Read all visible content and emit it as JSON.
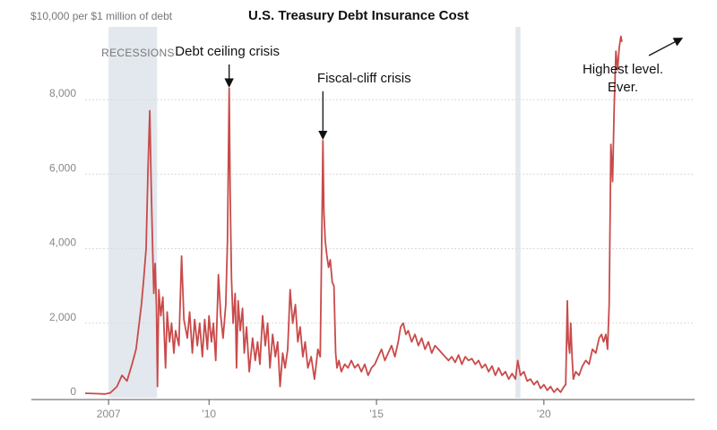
{
  "chart_data": {
    "type": "line",
    "title": "U.S. Treasury Debt Insurance Cost",
    "unit_label": "$10,000 per $1 million of debt",
    "xlim": [
      2005.3,
      2023.5
    ],
    "ylim": [
      0,
      10000
    ],
    "y_ticks": [
      {
        "value": 0,
        "label": "0"
      },
      {
        "value": 2000,
        "label": "2,000"
      },
      {
        "value": 4000,
        "label": "4,000"
      },
      {
        "value": 6000,
        "label": "6,000"
      },
      {
        "value": 8000,
        "label": "8,000"
      }
    ],
    "x_ticks": [
      {
        "value": 2006.0,
        "label": "2007"
      },
      {
        "value": 2009.0,
        "label": "'10"
      },
      {
        "value": 2014.0,
        "label": "'15"
      },
      {
        "value": 2019.0,
        "label": "'20"
      }
    ],
    "grid": "horizontal",
    "line_color": "#c94a4a",
    "recession_color": "#e3e8ee",
    "recessions": [
      {
        "start": 2006.0,
        "end": 2007.45,
        "label": "RECESSIONS"
      },
      {
        "start": 2018.15,
        "end": 2018.3,
        "label": ""
      }
    ],
    "annotations": [
      {
        "lines": [
          "Debt ceiling crisis"
        ],
        "x": 2009.6,
        "y": 8300
      },
      {
        "lines": [
          "Fiscal-cliff crisis"
        ],
        "x": 2012.4,
        "y": 6900
      },
      {
        "lines": [
          "Highest level.",
          "Ever."
        ],
        "x": 2023.3,
        "y": 9700
      }
    ],
    "series": [
      {
        "values": [
          [
            2005.3,
            120
          ],
          [
            2005.6,
            110
          ],
          [
            2005.9,
            100
          ],
          [
            2006.05,
            130
          ],
          [
            2006.25,
            300
          ],
          [
            2006.4,
            600
          ],
          [
            2006.55,
            450
          ],
          [
            2006.7,
            900
          ],
          [
            2006.82,
            1300
          ],
          [
            2006.9,
            1900
          ],
          [
            2006.98,
            2500
          ],
          [
            2007.05,
            3200
          ],
          [
            2007.12,
            4000
          ],
          [
            2007.18,
            6200
          ],
          [
            2007.23,
            7700
          ],
          [
            2007.27,
            5800
          ],
          [
            2007.31,
            4200
          ],
          [
            2007.35,
            2800
          ],
          [
            2007.39,
            3600
          ],
          [
            2007.43,
            2400
          ],
          [
            2007.46,
            300
          ],
          [
            2007.5,
            2900
          ],
          [
            2007.56,
            2200
          ],
          [
            2007.62,
            2700
          ],
          [
            2007.7,
            800
          ],
          [
            2007.75,
            2300
          ],
          [
            2007.82,
            1500
          ],
          [
            2007.88,
            2000
          ],
          [
            2007.95,
            1200
          ],
          [
            2008.0,
            1800
          ],
          [
            2008.1,
            1400
          ],
          [
            2008.18,
            3800
          ],
          [
            2008.25,
            2100
          ],
          [
            2008.35,
            1600
          ],
          [
            2008.42,
            2300
          ],
          [
            2008.5,
            1200
          ],
          [
            2008.57,
            2100
          ],
          [
            2008.65,
            1400
          ],
          [
            2008.72,
            2000
          ],
          [
            2008.8,
            1100
          ],
          [
            2008.87,
            2100
          ],
          [
            2008.95,
            1300
          ],
          [
            2009.0,
            2200
          ],
          [
            2009.07,
            1500
          ],
          [
            2009.13,
            2000
          ],
          [
            2009.2,
            1000
          ],
          [
            2009.28,
            3300
          ],
          [
            2009.35,
            2200
          ],
          [
            2009.42,
            1600
          ],
          [
            2009.5,
            2500
          ],
          [
            2009.55,
            4200
          ],
          [
            2009.6,
            8300
          ],
          [
            2009.63,
            5500
          ],
          [
            2009.67,
            3200
          ],
          [
            2009.72,
            2000
          ],
          [
            2009.78,
            2800
          ],
          [
            2009.82,
            800
          ],
          [
            2009.87,
            2600
          ],
          [
            2009.93,
            1800
          ],
          [
            2010.0,
            2400
          ],
          [
            2010.05,
            1200
          ],
          [
            2010.12,
            1900
          ],
          [
            2010.2,
            700
          ],
          [
            2010.3,
            1600
          ],
          [
            2010.38,
            1000
          ],
          [
            2010.45,
            1500
          ],
          [
            2010.52,
            900
          ],
          [
            2010.6,
            2200
          ],
          [
            2010.68,
            1400
          ],
          [
            2010.75,
            2000
          ],
          [
            2010.82,
            800
          ],
          [
            2010.9,
            1700
          ],
          [
            2010.98,
            1100
          ],
          [
            2011.05,
            1500
          ],
          [
            2011.12,
            300
          ],
          [
            2011.2,
            1200
          ],
          [
            2011.27,
            800
          ],
          [
            2011.35,
            1300
          ],
          [
            2011.42,
            2900
          ],
          [
            2011.5,
            2000
          ],
          [
            2011.58,
            2500
          ],
          [
            2011.65,
            1500
          ],
          [
            2011.72,
            1900
          ],
          [
            2011.8,
            1100
          ],
          [
            2011.87,
            1500
          ],
          [
            2011.95,
            800
          ],
          [
            2012.05,
            1100
          ],
          [
            2012.15,
            500
          ],
          [
            2012.25,
            1300
          ],
          [
            2012.32,
            1100
          ],
          [
            2012.38,
            5200
          ],
          [
            2012.4,
            6900
          ],
          [
            2012.43,
            5000
          ],
          [
            2012.47,
            4200
          ],
          [
            2012.52,
            3800
          ],
          [
            2012.57,
            3500
          ],
          [
            2012.62,
            3700
          ],
          [
            2012.68,
            3100
          ],
          [
            2012.73,
            3000
          ],
          [
            2012.78,
            1200
          ],
          [
            2012.82,
            800
          ],
          [
            2012.88,
            1000
          ],
          [
            2012.95,
            700
          ],
          [
            2013.05,
            900
          ],
          [
            2013.15,
            800
          ],
          [
            2013.25,
            1000
          ],
          [
            2013.35,
            800
          ],
          [
            2013.45,
            900
          ],
          [
            2013.55,
            700
          ],
          [
            2013.65,
            900
          ],
          [
            2013.75,
            600
          ],
          [
            2013.85,
            800
          ],
          [
            2013.95,
            900
          ],
          [
            2014.05,
            1100
          ],
          [
            2014.15,
            1300
          ],
          [
            2014.25,
            1000
          ],
          [
            2014.35,
            1200
          ],
          [
            2014.45,
            1400
          ],
          [
            2014.55,
            1100
          ],
          [
            2014.65,
            1500
          ],
          [
            2014.72,
            1900
          ],
          [
            2014.8,
            2000
          ],
          [
            2014.88,
            1700
          ],
          [
            2014.95,
            1800
          ],
          [
            2015.05,
            1500
          ],
          [
            2015.15,
            1700
          ],
          [
            2015.25,
            1400
          ],
          [
            2015.35,
            1600
          ],
          [
            2015.45,
            1300
          ],
          [
            2015.55,
            1500
          ],
          [
            2015.65,
            1200
          ],
          [
            2015.75,
            1400
          ],
          [
            2015.85,
            1300
          ],
          [
            2015.95,
            1200
          ],
          [
            2016.05,
            1100
          ],
          [
            2016.15,
            1000
          ],
          [
            2016.25,
            1100
          ],
          [
            2016.35,
            950
          ],
          [
            2016.45,
            1150
          ],
          [
            2016.55,
            900
          ],
          [
            2016.65,
            1100
          ],
          [
            2016.75,
            1000
          ],
          [
            2016.85,
            1050
          ],
          [
            2016.95,
            900
          ],
          [
            2017.05,
            1000
          ],
          [
            2017.15,
            800
          ],
          [
            2017.25,
            900
          ],
          [
            2017.35,
            700
          ],
          [
            2017.45,
            850
          ],
          [
            2017.55,
            600
          ],
          [
            2017.65,
            800
          ],
          [
            2017.75,
            600
          ],
          [
            2017.85,
            700
          ],
          [
            2017.95,
            500
          ],
          [
            2018.05,
            650
          ],
          [
            2018.15,
            500
          ],
          [
            2018.22,
            1000
          ],
          [
            2018.3,
            600
          ],
          [
            2018.4,
            700
          ],
          [
            2018.5,
            450
          ],
          [
            2018.6,
            500
          ],
          [
            2018.7,
            350
          ],
          [
            2018.8,
            450
          ],
          [
            2018.9,
            250
          ],
          [
            2019.0,
            350
          ],
          [
            2019.1,
            200
          ],
          [
            2019.2,
            300
          ],
          [
            2019.3,
            150
          ],
          [
            2019.4,
            250
          ],
          [
            2019.5,
            150
          ],
          [
            2019.6,
            300
          ],
          [
            2019.65,
            350
          ],
          [
            2019.7,
            2600
          ],
          [
            2019.73,
            1500
          ],
          [
            2019.77,
            1200
          ],
          [
            2019.8,
            2000
          ],
          [
            2019.84,
            1100
          ],
          [
            2019.88,
            500
          ],
          [
            2019.95,
            700
          ],
          [
            2020.05,
            600
          ],
          [
            2020.15,
            850
          ],
          [
            2020.25,
            1000
          ],
          [
            2020.35,
            900
          ],
          [
            2020.45,
            1300
          ],
          [
            2020.55,
            1200
          ],
          [
            2020.65,
            1600
          ],
          [
            2020.72,
            1700
          ],
          [
            2020.78,
            1500
          ],
          [
            2020.85,
            1700
          ],
          [
            2020.9,
            1300
          ],
          [
            2020.95,
            2500
          ],
          [
            2021.0,
            6800
          ],
          [
            2021.05,
            5800
          ],
          [
            2021.1,
            7800
          ],
          [
            2021.15,
            9300
          ],
          [
            2021.2,
            8800
          ],
          [
            2021.25,
            9400
          ],
          [
            2021.3,
            9700
          ],
          [
            2021.33,
            9550
          ]
        ]
      }
    ]
  }
}
